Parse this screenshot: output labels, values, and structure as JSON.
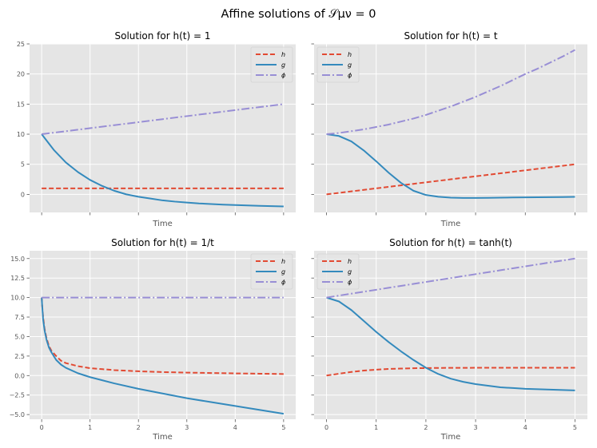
{
  "figure": {
    "suptitle": "Affine solutions of 𝒮μν = 0"
  },
  "colors": {
    "h": "#E24A33",
    "g": "#348ABD",
    "phi": "#988ED5",
    "panel_bg": "#E5E5E5",
    "grid": "#FFFFFF"
  },
  "legend_labels": {
    "h": "h",
    "g": "g",
    "phi": "ϕ"
  },
  "chart_data": [
    {
      "type": "line",
      "title": "Solution for h(t) = 1",
      "xlabel": "Time",
      "ylabel": "",
      "xlim": [
        -0.25,
        5.25
      ],
      "ylim": [
        -3,
        25
      ],
      "xticks": [
        0,
        1,
        2,
        3,
        4,
        5
      ],
      "show_xticklabels": false,
      "yticks": [
        0,
        5,
        10,
        15,
        20,
        25
      ],
      "ytick_labels": [
        "0",
        "5",
        "10",
        "15",
        "20",
        "25"
      ],
      "show_yticklabels": true,
      "legend_position": "top-right",
      "grid": true,
      "x": [
        0,
        0.25,
        0.5,
        0.75,
        1,
        1.25,
        1.5,
        1.75,
        2,
        2.25,
        2.5,
        2.75,
        3,
        3.25,
        3.5,
        3.75,
        4,
        4.25,
        4.5,
        4.75,
        5
      ],
      "series": [
        {
          "key": "h",
          "style": "dashed",
          "values": [
            1,
            1,
            1,
            1,
            1,
            1,
            1,
            1,
            1,
            1,
            1,
            1,
            1,
            1,
            1,
            1,
            1,
            1,
            1,
            1,
            1
          ]
        },
        {
          "key": "g",
          "style": "solid",
          "values": [
            10,
            7.4,
            5.3,
            3.7,
            2.4,
            1.4,
            0.6,
            0,
            -0.4,
            -0.7,
            -1.0,
            -1.2,
            -1.35,
            -1.5,
            -1.6,
            -1.7,
            -1.78,
            -1.84,
            -1.9,
            -1.95,
            -2.0
          ]
        },
        {
          "key": "phi",
          "style": "dashdot",
          "values": [
            10,
            10.25,
            10.5,
            10.75,
            11,
            11.25,
            11.5,
            11.75,
            12,
            12.25,
            12.5,
            12.75,
            13,
            13.25,
            13.5,
            13.75,
            14,
            14.25,
            14.5,
            14.75,
            15
          ]
        }
      ]
    },
    {
      "type": "line",
      "title": "Solution for h(t) = t",
      "xlabel": "Time",
      "ylabel": "",
      "xlim": [
        -0.25,
        5.25
      ],
      "ylim": [
        -3,
        25
      ],
      "xticks": [
        0,
        1,
        2,
        3,
        4,
        5
      ],
      "show_xticklabels": false,
      "yticks": [
        0,
        5,
        10,
        15,
        20,
        25
      ],
      "ytick_labels": [
        "0",
        "5",
        "10",
        "15",
        "20",
        "25"
      ],
      "show_yticklabels": false,
      "legend_position": "top-left",
      "grid": true,
      "x": [
        0,
        0.25,
        0.5,
        0.75,
        1,
        1.25,
        1.5,
        1.75,
        2,
        2.25,
        2.5,
        2.75,
        3,
        3.25,
        3.5,
        3.75,
        4,
        4.25,
        4.5,
        4.75,
        5
      ],
      "series": [
        {
          "key": "h",
          "style": "dashed",
          "values": [
            0,
            0.25,
            0.5,
            0.75,
            1,
            1.25,
            1.5,
            1.75,
            2,
            2.25,
            2.5,
            2.75,
            3,
            3.25,
            3.5,
            3.75,
            4,
            4.25,
            4.5,
            4.75,
            5
          ]
        },
        {
          "key": "g",
          "style": "solid",
          "values": [
            10,
            9.7,
            8.8,
            7.3,
            5.5,
            3.6,
            1.9,
            0.6,
            -0.1,
            -0.4,
            -0.55,
            -0.6,
            -0.6,
            -0.58,
            -0.55,
            -0.52,
            -0.5,
            -0.48,
            -0.46,
            -0.44,
            -0.42
          ]
        },
        {
          "key": "phi",
          "style": "dashdot",
          "values": [
            10,
            10.2,
            10.5,
            10.8,
            11.2,
            11.6,
            12.1,
            12.6,
            13.2,
            13.9,
            14.6,
            15.4,
            16.2,
            17.1,
            18.0,
            19.0,
            20.0,
            20.9,
            21.9,
            22.9,
            24.0
          ]
        }
      ]
    },
    {
      "type": "line",
      "title": "Solution for h(t) = 1/t",
      "xlabel": "Time",
      "ylabel": "",
      "xlim": [
        -0.25,
        5.25
      ],
      "ylim": [
        -5.6,
        16
      ],
      "xticks": [
        0,
        1,
        2,
        3,
        4,
        5
      ],
      "xtick_labels": [
        "0",
        "1",
        "2",
        "3",
        "4",
        "5"
      ],
      "show_xticklabels": true,
      "yticks": [
        -5.0,
        -2.5,
        0.0,
        2.5,
        5.0,
        7.5,
        10.0,
        12.5,
        15.0
      ],
      "ytick_labels": [
        "−5.0",
        "−2.5",
        "0.0",
        "2.5",
        "5.0",
        "7.5",
        "10.0",
        "12.5",
        "15.0"
      ],
      "show_yticklabels": true,
      "legend_position": "top-right",
      "grid": true,
      "x": [
        0.001,
        0.01,
        0.03,
        0.06,
        0.1,
        0.15,
        0.2,
        0.3,
        0.4,
        0.5,
        0.75,
        1,
        1.5,
        2,
        2.5,
        3,
        3.5,
        4,
        4.5,
        5
      ],
      "series": [
        {
          "key": "h",
          "style": "dashed",
          "values": [
            10,
            9.0,
            7.5,
            6.0,
            4.8,
            3.8,
            3.2,
            2.5,
            1.9,
            1.6,
            1.2,
            0.95,
            0.7,
            0.55,
            0.45,
            0.38,
            0.33,
            0.28,
            0.24,
            0.2
          ]
        },
        {
          "key": "g",
          "style": "solid",
          "values": [
            10,
            9.0,
            7.2,
            5.8,
            4.6,
            3.6,
            3.0,
            2.0,
            1.4,
            1.0,
            0.3,
            -0.2,
            -1.0,
            -1.7,
            -2.3,
            -2.9,
            -3.4,
            -3.9,
            -4.4,
            -4.9
          ]
        },
        {
          "key": "phi",
          "style": "dashdot",
          "values": [
            10,
            10,
            10,
            10,
            10,
            10,
            10,
            10,
            10,
            10,
            10,
            10,
            10,
            10,
            10,
            10,
            10,
            10,
            10,
            10
          ]
        }
      ]
    },
    {
      "type": "line",
      "title": "Solution for h(t) = tanh(t)",
      "xlabel": "Time",
      "ylabel": "",
      "xlim": [
        -0.25,
        5.25
      ],
      "ylim": [
        -5.6,
        16
      ],
      "xticks": [
        0,
        1,
        2,
        3,
        4,
        5
      ],
      "xtick_labels": [
        "0",
        "1",
        "2",
        "3",
        "4",
        "5"
      ],
      "show_xticklabels": true,
      "yticks": [
        -5.0,
        -2.5,
        0.0,
        2.5,
        5.0,
        7.5,
        10.0,
        12.5,
        15.0
      ],
      "ytick_labels": [
        "−5.0",
        "−2.5",
        "0.0",
        "2.5",
        "5.0",
        "7.5",
        "10.0",
        "12.5",
        "15.0"
      ],
      "show_yticklabels": false,
      "legend_position": "top-left",
      "grid": true,
      "x": [
        0,
        0.25,
        0.5,
        0.75,
        1,
        1.25,
        1.5,
        1.75,
        2,
        2.25,
        2.5,
        2.75,
        3,
        3.25,
        3.5,
        3.75,
        4,
        4.25,
        4.5,
        4.75,
        5
      ],
      "series": [
        {
          "key": "h",
          "style": "dashed",
          "values": [
            0,
            0.24,
            0.46,
            0.64,
            0.76,
            0.85,
            0.9,
            0.94,
            0.96,
            0.98,
            0.99,
            0.99,
            1,
            1,
            1,
            1,
            1,
            1,
            1,
            1,
            1
          ]
        },
        {
          "key": "g",
          "style": "solid",
          "values": [
            10,
            9.5,
            8.4,
            7.0,
            5.6,
            4.3,
            3.1,
            2.0,
            1.0,
            0.2,
            -0.4,
            -0.8,
            -1.1,
            -1.3,
            -1.5,
            -1.6,
            -1.7,
            -1.75,
            -1.8,
            -1.85,
            -1.9
          ]
        },
        {
          "key": "phi",
          "style": "dashdot",
          "values": [
            10,
            10.25,
            10.5,
            10.75,
            11,
            11.25,
            11.5,
            11.75,
            12,
            12.25,
            12.5,
            12.75,
            13,
            13.25,
            13.5,
            13.75,
            14,
            14.25,
            14.5,
            14.75,
            15
          ]
        }
      ]
    }
  ]
}
